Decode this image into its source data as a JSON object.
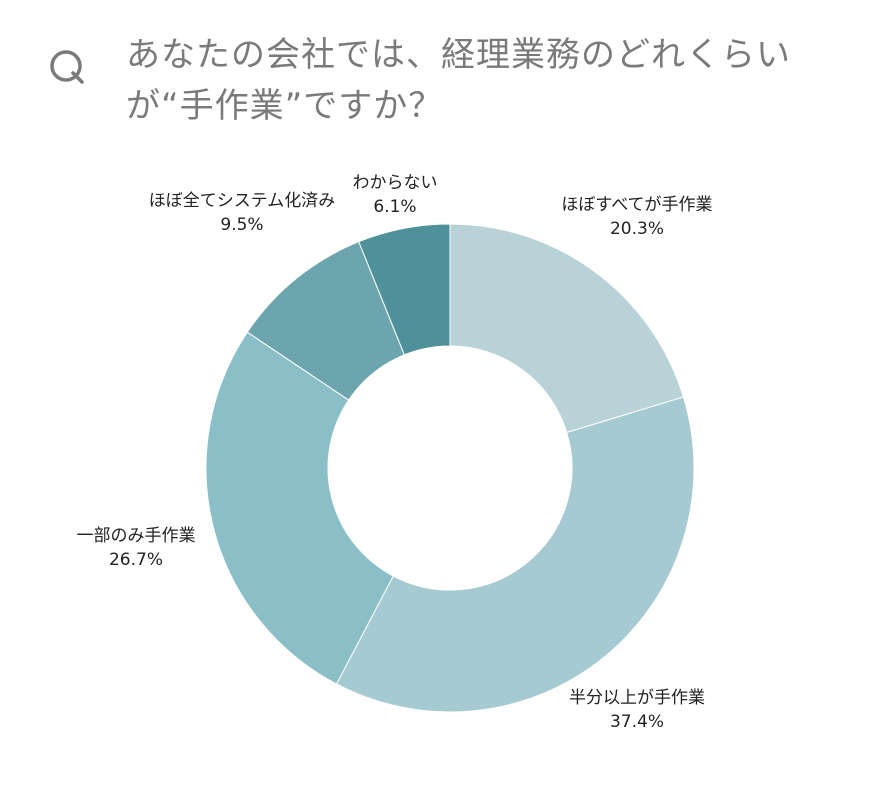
{
  "question": {
    "mark": "Q",
    "line1": "あなたの会社では、経理業務のどれくらい",
    "line2": "が“手作業”ですか？"
  },
  "chart_data": {
    "type": "pie",
    "donut": true,
    "start_angle_deg": 0,
    "direction": "clockwise",
    "legend": "none",
    "title": "",
    "slices": [
      {
        "label": "ほぼすべてが手作業",
        "value": 20.3,
        "display": "20.3%",
        "color": "#b8d2d7"
      },
      {
        "label": "半分以上が手作業",
        "value": 37.4,
        "display": "37.4%",
        "color": "#a5cad1"
      },
      {
        "label": "一部のみ手作業",
        "value": 26.7,
        "display": "26.7%",
        "color": "#8bbfc8"
      },
      {
        "label": "ほぼ全てシステム化済み",
        "value": 9.5,
        "display": "9.5%",
        "color": "#6da5ae"
      },
      {
        "label": "わからない",
        "value": 6.1,
        "display": "6.1%",
        "color": "#4e919b"
      }
    ]
  }
}
